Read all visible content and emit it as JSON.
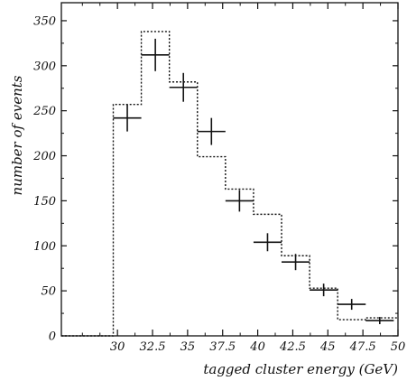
{
  "chart_data": {
    "type": "histogram",
    "title": "",
    "xlabel": "tagged cluster energy (GeV)",
    "ylabel": "number of events",
    "xlim": [
      26,
      50
    ],
    "ylim": [
      0,
      370
    ],
    "xticks": [
      30,
      32.5,
      35,
      37.5,
      40,
      42.5,
      45,
      47.5,
      50
    ],
    "xtick_labels": [
      "30",
      "32.5",
      "35",
      "37.5",
      "40",
      "42.5",
      "45",
      "47.5",
      "50"
    ],
    "yticks": [
      0,
      50,
      100,
      150,
      200,
      250,
      300,
      350
    ],
    "ytick_labels": [
      "0",
      "50",
      "100",
      "150",
      "200",
      "250",
      "300",
      "350"
    ],
    "grid": false,
    "series": [
      {
        "kind": "data-points-with-errors",
        "bins": [
          {
            "lo": 29.7,
            "hi": 31.7,
            "y": 242,
            "err": 15
          },
          {
            "lo": 31.7,
            "hi": 33.7,
            "y": 312,
            "err": 18
          },
          {
            "lo": 33.7,
            "hi": 35.7,
            "y": 276,
            "err": 16
          },
          {
            "lo": 35.7,
            "hi": 37.7,
            "y": 227,
            "err": 15
          },
          {
            "lo": 37.7,
            "hi": 39.7,
            "y": 150,
            "err": 12
          },
          {
            "lo": 39.7,
            "hi": 41.7,
            "y": 104,
            "err": 10
          },
          {
            "lo": 41.7,
            "hi": 43.7,
            "y": 82,
            "err": 9
          },
          {
            "lo": 43.7,
            "hi": 45.7,
            "y": 51,
            "err": 7
          },
          {
            "lo": 45.7,
            "hi": 47.7,
            "y": 35,
            "err": 6
          },
          {
            "lo": 47.7,
            "hi": 49.7,
            "y": 17,
            "err": 4
          }
        ]
      },
      {
        "kind": "dotted-step-histogram",
        "edges": [
          26,
          29.7,
          31.7,
          33.7,
          35.7,
          37.7,
          39.7,
          41.7,
          43.7,
          45.7,
          47.7,
          50
        ],
        "values": [
          0,
          257,
          338,
          282,
          199,
          163,
          135,
          89,
          53,
          18,
          20
        ]
      }
    ]
  }
}
